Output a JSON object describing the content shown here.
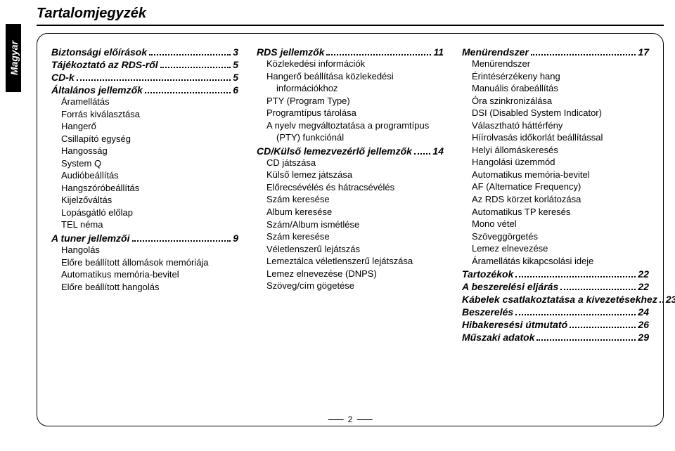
{
  "lang_tab": "Magyar",
  "page_title": "Tartalomjegyzék",
  "page_number": "2",
  "columns": [
    {
      "sections": [
        {
          "heading": "Biztonsági előírások",
          "page": "3",
          "items": []
        },
        {
          "heading": "Tájékoztató az RDS-ről",
          "page": "5",
          "items": []
        },
        {
          "heading": "CD-k",
          "page": "5",
          "items": []
        },
        {
          "heading": "Általános jellemzők",
          "page": "6",
          "items": [
            "Áramellátás",
            "Forrás kiválasztása",
            "Hangerő",
            "Csillapító egység",
            "Hangosság",
            "System Q",
            "Audióbeállítás",
            "Hangszóróbeállítás",
            "Kijelzőváltás",
            "Lopásgátló előlap",
            "TEL néma"
          ]
        },
        {
          "heading": "A tuner jellemzői",
          "page": "9",
          "items": [
            "Hangolás",
            "Előre beállított állomások memóriája",
            "Automatikus memória-bevitel",
            "Előre beállított hangolás"
          ]
        }
      ]
    },
    {
      "sections": [
        {
          "heading": "RDS jellemzők",
          "page": "11",
          "items": [
            "Közlekedési információk",
            "Hangerő beállítása közlekedési információkhoz",
            "PTY (Program Type)",
            "Programtípus tárolása",
            "A nyelv megváltoztatása a programtípus (PTY) funkciónál"
          ]
        },
        {
          "heading": "CD/Külső lemezvezérlő jellemzők",
          "page": "14",
          "items": [
            "CD játszása",
            "Külső lemez játszása",
            "Előrecsévélés és hátracsévélés",
            "Szám keresése",
            "Album keresése",
            "Szám/Album ismétlése",
            "Szám keresése",
            "Véletlenszerű lejátszás",
            "Lemeztálca véletlenszerű lejátszása",
            "Lemez elnevezése (DNPS)",
            "Szöveg/cím gögetése"
          ]
        }
      ]
    },
    {
      "sections": [
        {
          "heading": "Menürendszer",
          "page": "17",
          "items": [
            "Menürendszer",
            "Érintésérzékeny hang",
            "Manuális órabeállítás",
            "Óra szinkronizálása",
            "DSI (Disabled System Indicator)",
            "Választható háttérfény",
            "Híírolvasás időkorlát beállítással",
            "Helyi állomáskeresés",
            "Hangolási üzemmód",
            "Automatikus memória-bevitel",
            "AF (Alternatice Frequency)",
            "Az RDS körzet korlátozása",
            "Automatikus TP keresés",
            "Mono vétel",
            "Szöveggörgetés",
            "Lemez elnevezése",
            "Áramellátás kikapcsolási ideje"
          ]
        },
        {
          "heading": "Tartozékok",
          "page": "22",
          "items": []
        },
        {
          "heading": "A beszerelési eljárás",
          "page": "22",
          "items": []
        },
        {
          "heading": "Kábelek csatlakoztatása a kivezetésekhez",
          "page": "23",
          "items": []
        },
        {
          "heading": "Beszerelés",
          "page": "24",
          "items": []
        },
        {
          "heading": "Hibakeresési útmutató",
          "page": "26",
          "items": []
        },
        {
          "heading": "Műszaki adatok",
          "page": "29",
          "items": []
        }
      ]
    }
  ]
}
